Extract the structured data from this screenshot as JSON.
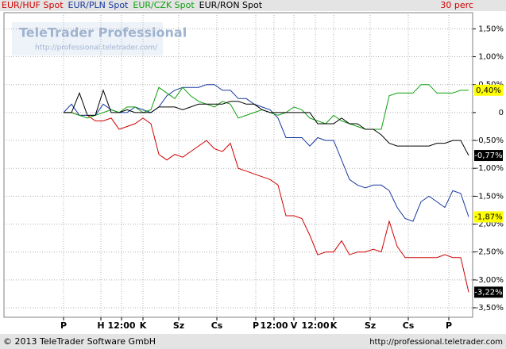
{
  "chart_data": {
    "type": "line",
    "interval": "30 perc",
    "watermark": {
      "title": "TeleTrader Professional",
      "url": "http://professional.teletrader.com/"
    },
    "footer": {
      "copyright": "© 2013 TeleTrader Software GmbH",
      "url": "http://professional.teletrader.com"
    },
    "x": [
      0,
      2,
      4,
      6,
      8,
      10,
      12,
      14,
      16,
      18,
      20,
      22,
      24,
      26,
      28,
      30,
      32,
      34,
      36,
      38,
      40,
      42,
      44,
      46,
      48,
      50,
      52,
      54,
      56,
      58,
      60,
      62,
      64,
      66,
      68,
      70,
      72,
      74,
      76,
      78,
      80,
      82,
      84,
      86,
      88,
      90,
      92,
      94,
      96,
      98,
      100,
      102
    ],
    "xlim": [
      -15,
      103
    ],
    "xticks": [
      {
        "value": 0,
        "label": "P"
      },
      {
        "value": 9.4,
        "label": "H"
      },
      {
        "value": 14.6,
        "label": "12:00"
      },
      {
        "value": 20,
        "label": "K"
      },
      {
        "value": 29,
        "label": "Sz"
      },
      {
        "value": 38.6,
        "label": "Cs"
      },
      {
        "value": 48.4,
        "label": "P"
      },
      {
        "value": 53,
        "label": "12:00"
      },
      {
        "value": 58,
        "label": "V"
      },
      {
        "value": 63.4,
        "label": "12:00"
      },
      {
        "value": 68,
        "label": "K"
      },
      {
        "value": 77.2,
        "label": "Sz"
      },
      {
        "value": 86.8,
        "label": "Cs"
      },
      {
        "value": 97,
        "label": "P"
      }
    ],
    "ylim": [
      -3.67,
      1.79
    ],
    "yticks": [
      {
        "value": 1.5,
        "label": "1,50%"
      },
      {
        "value": 1,
        "label": "1,00%"
      },
      {
        "value": 0.5,
        "label": "0,50%"
      },
      0,
      {
        "value": -0.5,
        "label": "-0,50%"
      },
      {
        "value": -1,
        "label": "-1,00%"
      },
      {
        "value": -1.5,
        "label": "-1,50%"
      },
      {
        "value": -2,
        "label": "-2,00%"
      },
      {
        "value": -2.5,
        "label": "-2,50%"
      },
      {
        "value": -3,
        "label": "-3,00%"
      },
      {
        "value": -3.5,
        "label": "-3,50%"
      }
    ],
    "grid": true,
    "series": [
      {
        "name": "EUR/HUF Spot",
        "color": "#d00000",
        "tag_background": "#000000",
        "tag_color": "#ffffff",
        "end_label": {
          "value": -3.22,
          "label": "-3,22%"
        },
        "values": [
          0,
          0,
          -0.05,
          -0.05,
          -0.15,
          -0.15,
          -0.1,
          -0.3,
          -0.25,
          -0.2,
          -0.1,
          -0.2,
          -0.75,
          -0.85,
          -0.75,
          -0.8,
          -0.7,
          -0.6,
          -0.5,
          -0.65,
          -0.7,
          -0.55,
          -1.0,
          -1.05,
          -1.1,
          -1.15,
          -1.2,
          -1.3,
          -1.85,
          -1.85,
          -1.9,
          -2.2,
          -2.55,
          -2.5,
          -2.5,
          -2.3,
          -2.55,
          -2.5,
          -2.5,
          -2.45,
          -2.5,
          -1.95,
          -2.4,
          -2.6,
          -2.6,
          -2.6,
          -2.6,
          -2.6,
          -2.55,
          -2.6,
          -2.6,
          -3.22
        ]
      },
      {
        "name": "EUR/PLN Spot",
        "color": "#1838a0",
        "tag_background": "#ffff00",
        "tag_color": "#000000",
        "end_label": {
          "value": -1.87,
          "label": "-1,87%"
        },
        "values": [
          0,
          0.15,
          -0.05,
          -0.05,
          -0.05,
          0.15,
          0.05,
          0,
          0,
          0.1,
          0.05,
          0,
          0.1,
          0.3,
          0.4,
          0.45,
          0.45,
          0.45,
          0.5,
          0.5,
          0.4,
          0.4,
          0.25,
          0.25,
          0.15,
          0.1,
          0.05,
          -0.1,
          -0.45,
          -0.45,
          -0.45,
          -0.6,
          -0.45,
          -0.5,
          -0.5,
          -0.85,
          -1.2,
          -1.3,
          -1.35,
          -1.3,
          -1.3,
          -1.4,
          -1.7,
          -1.9,
          -1.95,
          -1.6,
          -1.5,
          -1.6,
          -1.7,
          -1.4,
          -1.45,
          -1.87
        ]
      },
      {
        "name": "EUR/CZK Spot",
        "color": "#10a010",
        "tag_background": "#ffff00",
        "tag_color": "#000000",
        "end_label": {
          "value": 0.4,
          "label": "0,40%"
        },
        "values": [
          0,
          0,
          -0.05,
          -0.1,
          -0.05,
          0,
          0.05,
          0,
          0.1,
          0.1,
          0,
          0.05,
          0.45,
          0.35,
          0.25,
          0.45,
          0.3,
          0.2,
          0.15,
          0.1,
          0.2,
          0.15,
          -0.1,
          -0.05,
          0,
          0.05,
          0,
          -0.05,
          0,
          0.1,
          0.05,
          -0.1,
          -0.15,
          -0.2,
          -0.05,
          -0.15,
          -0.2,
          -0.25,
          -0.3,
          -0.3,
          -0.3,
          0.3,
          0.35,
          0.35,
          0.35,
          0.5,
          0.5,
          0.35,
          0.35,
          0.35,
          0.4,
          0.4
        ]
      },
      {
        "name": "EUR/RON Spot",
        "color": "#000000",
        "tag_background": "#000000",
        "tag_color": "#ffffff",
        "end_label": {
          "value": -0.77,
          "label": "-0,77%"
        },
        "values": [
          0,
          0,
          0.35,
          -0.05,
          -0.05,
          0.4,
          0,
          0,
          0.05,
          0,
          0,
          0,
          0.1,
          0.1,
          0.1,
          0.05,
          0.1,
          0.15,
          0.15,
          0.15,
          0.15,
          0.2,
          0.2,
          0.15,
          0.15,
          0.05,
          0,
          0,
          0,
          0,
          0,
          0,
          -0.2,
          -0.2,
          -0.2,
          -0.1,
          -0.2,
          -0.2,
          -0.3,
          -0.3,
          -0.4,
          -0.55,
          -0.6,
          -0.6,
          -0.6,
          -0.6,
          -0.6,
          -0.55,
          -0.55,
          -0.5,
          -0.5,
          -0.77
        ]
      }
    ]
  }
}
